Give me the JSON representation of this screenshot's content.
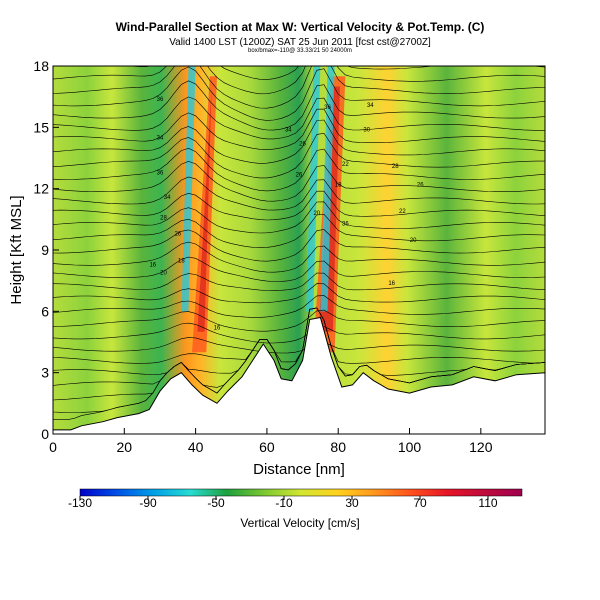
{
  "header": {
    "title": "Wind-Parallel Section at Max W: Vertical Velocity & Pot.Temp. (C)",
    "subtitle": "Valid 1400 LST (1200Z) SAT 25 Jun 2011 [fcst cst@2700Z]",
    "subtitle_small": "box/bmax=-110@ 33.33/21 50 24000m"
  },
  "chart_data": {
    "type": "heatmap",
    "xlabel": "Distance [nm]",
    "ylabel": "Height [Kft MSL]",
    "xlim": [
      0,
      138
    ],
    "ylim": [
      0,
      18
    ],
    "x_ticks": [
      0,
      20,
      40,
      60,
      80,
      100,
      120
    ],
    "y_ticks": [
      0,
      3,
      6,
      9,
      12,
      15,
      18
    ],
    "colorbar": {
      "label": "Vertical Velocity [cm/s]",
      "range": [
        -130,
        130
      ],
      "ticks": [
        -130,
        -90,
        -50,
        -10,
        30,
        70,
        110
      ],
      "colors": [
        "#0000c8",
        "#0050e6",
        "#00a0e6",
        "#28dcd2",
        "#1ea03c",
        "#7dc832",
        "#d2e632",
        "#ffd21e",
        "#ff961e",
        "#ff501e",
        "#e61428",
        "#be0a3c",
        "#a00050"
      ]
    },
    "terrain_nm_kft": [
      [
        0,
        0.2
      ],
      [
        5,
        0.2
      ],
      [
        8,
        0.4
      ],
      [
        14,
        0.6
      ],
      [
        18,
        0.8
      ],
      [
        24,
        1.0
      ],
      [
        27,
        1.2
      ],
      [
        30,
        2.1
      ],
      [
        33,
        2.7
      ],
      [
        36,
        3.0
      ],
      [
        39,
        2.4
      ],
      [
        42,
        1.9
      ],
      [
        46,
        1.5
      ],
      [
        49,
        2.1
      ],
      [
        53,
        2.8
      ],
      [
        56,
        3.6
      ],
      [
        59,
        4.4
      ],
      [
        62,
        3.6
      ],
      [
        64,
        2.7
      ],
      [
        67,
        2.6
      ],
      [
        70,
        3.6
      ],
      [
        72,
        5.6
      ],
      [
        75,
        5.7
      ],
      [
        78,
        3.8
      ],
      [
        81,
        2.3
      ],
      [
        84,
        2.4
      ],
      [
        87,
        3.0
      ],
      [
        90,
        2.6
      ],
      [
        94,
        2.2
      ],
      [
        100,
        2.0
      ],
      [
        106,
        2.3
      ],
      [
        112,
        2.4
      ],
      [
        118,
        2.8
      ],
      [
        124,
        2.6
      ],
      [
        130,
        2.9
      ],
      [
        138,
        3.0
      ]
    ],
    "updraft_bands_nm": [
      [
        42,
        44
      ],
      [
        76,
        80
      ]
    ],
    "downdraft_bands_nm": [
      [
        36,
        38
      ],
      [
        71,
        73
      ],
      [
        75,
        77
      ]
    ],
    "contour_labels": [
      "36",
      "34",
      "36",
      "34",
      "28",
      "16",
      "26",
      "20",
      "18",
      "16",
      "36",
      "34",
      "26",
      "22",
      "18",
      "26",
      "20",
      "36",
      "34",
      "30",
      "28",
      "26",
      "22",
      "20",
      "16"
    ],
    "grid": false,
    "legend": "colorbar-bottom"
  }
}
